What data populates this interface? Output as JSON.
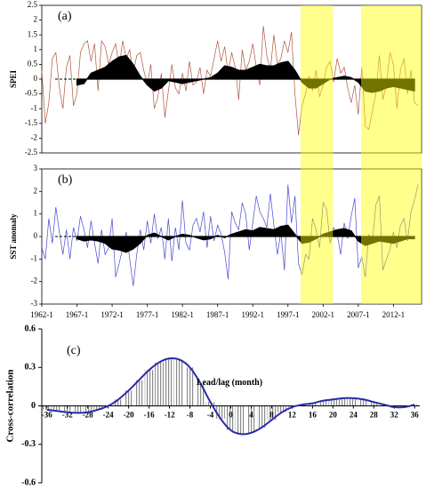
{
  "chart_data": [
    {
      "type": "line",
      "label": "(a)",
      "ylabel": "SPEI",
      "x": [
        1962,
        1962.5,
        1963,
        1963.5,
        1964,
        1964.5,
        1965,
        1965.5,
        1966,
        1966.5,
        1967,
        1967.5,
        1968,
        1968.5,
        1969,
        1969.5,
        1970,
        1970.5,
        1971,
        1971.5,
        1972,
        1972.5,
        1973,
        1973.5,
        1974,
        1974.5,
        1975,
        1975.5,
        1976,
        1976.5,
        1977,
        1977.5,
        1978,
        1978.5,
        1979,
        1979.5,
        1980,
        1980.5,
        1981,
        1981.5,
        1982,
        1982.5,
        1983,
        1983.5,
        1984,
        1984.5,
        1985,
        1985.5,
        1986,
        1986.5,
        1987,
        1987.5,
        1988,
        1988.5,
        1989,
        1989.5,
        1990,
        1990.5,
        1991,
        1991.5,
        1992,
        1992.5,
        1993,
        1993.5,
        1994,
        1994.5,
        1995,
        1995.5,
        1996,
        1996.5,
        1997,
        1997.5,
        1998,
        1998.5,
        1999,
        1999.5,
        2000,
        2000.5,
        2001,
        2001.5,
        2002,
        2002.5,
        2003,
        2003.5,
        2004,
        2004.5,
        2005,
        2005.5,
        2006,
        2006.5,
        2007,
        2007.5,
        2008,
        2008.5,
        2009,
        2009.5,
        2010,
        2010.5,
        2011,
        2011.5,
        2012,
        2012.5,
        2013,
        2013.5,
        2014,
        2014.5,
        2015,
        2015.5
      ],
      "xlim": [
        1962,
        2016
      ],
      "ylim": [
        -2.5,
        2.5
      ],
      "yticks": [
        2.5,
        2,
        1.5,
        1,
        0.5,
        0,
        -0.5,
        -1,
        -1.5,
        -2,
        -2.5
      ],
      "series": [
        {
          "color": "#b0563e",
          "values": [
            0.3,
            -1.5,
            -0.8,
            0.7,
            0.9,
            -0.3,
            -1.0,
            0.4,
            0.8,
            -0.9,
            -0.5,
            0.9,
            1.2,
            1.3,
            0.6,
            1.2,
            -0.4,
            1.3,
            1.1,
            0.5,
            0.9,
            1.2,
            0.4,
            1.3,
            0.7,
            1.0,
            0.2,
            0.8,
            0.9,
            0.3,
            -0.2,
            0.5,
            -1.0,
            -0.6,
            0.2,
            -1.3,
            -0.4,
            0.5,
            -0.3,
            -0.5,
            0.2,
            -0.4,
            0.6,
            -0.2,
            -0.1,
            0.4,
            -0.5,
            0.3,
            0.1,
            0.7,
            1.3,
            0.6,
            1.1,
            0.2,
            0.9,
            0.4,
            -0.7,
            1.0,
            0.3,
            0.6,
            1.2,
            0.4,
            -0.2,
            1.8,
            0.8,
            0.3,
            1.5,
            0.5,
            0.7,
            1.3,
            0.9,
            1.6,
            -0.5,
            -1.9,
            -0.9,
            -0.5,
            0.1,
            -0.4,
            0.3,
            -0.6,
            -0.2,
            0.4,
            0.6,
            -0.1,
            0.7,
            0.2,
            0.4,
            -0.3,
            -0.8,
            -0.2,
            -1.2,
            0.4,
            -1.6,
            -1.7,
            -1.1,
            -0.5,
            0.8,
            -0.7,
            -0.2,
            0.9,
            0.5,
            -1.0,
            0.3,
            0.7,
            -0.5,
            0.3,
            -0.8,
            -0.9
          ]
        },
        {
          "type": "area",
          "color": "#000000",
          "x": [
            1967,
            1968,
            1969,
            1970,
            1971,
            1972,
            1973,
            1974,
            1975,
            1976,
            1977,
            1978,
            1979,
            1980,
            1981,
            1982,
            1983,
            1984,
            1985,
            1986,
            1987,
            1988,
            1989,
            1990,
            1991,
            1992,
            1993,
            1994,
            1995,
            1996,
            1997,
            1998,
            1999,
            2000,
            2001,
            2002,
            2003,
            2004,
            2005,
            2006,
            2007,
            2008,
            2009,
            2010,
            2011,
            2012,
            2013,
            2014,
            2015
          ],
          "values": [
            -0.2,
            -0.15,
            0.2,
            0.3,
            0.4,
            0.6,
            0.75,
            0.8,
            0.5,
            0.1,
            -0.2,
            -0.4,
            -0.3,
            -0.05,
            -0.1,
            -0.15,
            -0.1,
            -0.05,
            0.0,
            0.05,
            0.2,
            0.45,
            0.4,
            0.3,
            0.3,
            0.4,
            0.5,
            0.45,
            0.45,
            0.55,
            0.6,
            0.3,
            -0.1,
            -0.3,
            -0.3,
            -0.15,
            0.0,
            0.05,
            0.1,
            0.05,
            -0.1,
            -0.4,
            -0.45,
            -0.4,
            -0.3,
            -0.25,
            -0.3,
            -0.35,
            -0.4
          ]
        }
      ],
      "highlight_ranges": [
        [
          1998.8,
          2003.4
        ],
        [
          2007.4,
          2016
        ]
      ],
      "highlight_color": "#ffff00"
    },
    {
      "type": "line",
      "label": "(b)",
      "ylabel": "SST anomaly",
      "x": [
        1962,
        1962.5,
        1963,
        1963.5,
        1964,
        1964.5,
        1965,
        1965.5,
        1966,
        1966.5,
        1967,
        1967.5,
        1968,
        1968.5,
        1969,
        1969.5,
        1970,
        1970.5,
        1971,
        1971.5,
        1972,
        1972.5,
        1973,
        1973.5,
        1974,
        1974.5,
        1975,
        1975.5,
        1976,
        1976.5,
        1977,
        1977.5,
        1978,
        1978.5,
        1979,
        1979.5,
        1980,
        1980.5,
        1981,
        1981.5,
        1982,
        1982.5,
        1983,
        1983.5,
        1984,
        1984.5,
        1985,
        1985.5,
        1986,
        1986.5,
        1987,
        1987.5,
        1988,
        1988.5,
        1989,
        1989.5,
        1990,
        1990.5,
        1991,
        1991.5,
        1992,
        1992.5,
        1993,
        1993.5,
        1994,
        1994.5,
        1995,
        1995.5,
        1996,
        1996.5,
        1997,
        1997.5,
        1998,
        1998.5,
        1999,
        1999.5,
        2000,
        2000.5,
        2001,
        2001.5,
        2002,
        2002.5,
        2003,
        2003.5,
        2004,
        2004.5,
        2005,
        2005.5,
        2006,
        2006.5,
        2007,
        2007.5,
        2008,
        2008.5,
        2009,
        2009.5,
        2010,
        2010.5,
        2011,
        2011.5,
        2012,
        2012.5,
        2013,
        2013.5,
        2014,
        2014.5,
        2015,
        2015.5
      ],
      "xlim": [
        1962,
        2016
      ],
      "ylim": [
        -3,
        3
      ],
      "yticks": [
        3,
        2,
        1,
        0,
        -1,
        -2,
        -3
      ],
      "xticks": [
        {
          "value": 1962,
          "label": "1962-1"
        },
        {
          "value": 1967,
          "label": "1967-1"
        },
        {
          "value": 1972,
          "label": "1972-1"
        },
        {
          "value": 1977,
          "label": "1977-1"
        },
        {
          "value": 1982,
          "label": "1982-1"
        },
        {
          "value": 1987,
          "label": "1987-1"
        },
        {
          "value": 1992,
          "label": "1992-1"
        },
        {
          "value": 1997,
          "label": "1997-1"
        },
        {
          "value": 2002,
          "label": "2002-1"
        },
        {
          "value": 2007,
          "label": "2007-1"
        },
        {
          "value": 2012,
          "label": "2012-1"
        }
      ],
      "series": [
        {
          "color": "#4848d0",
          "values": [
            -0.5,
            -1.0,
            0.8,
            -0.3,
            1.3,
            0.2,
            -0.8,
            0.3,
            -1.0,
            0.4,
            -0.2,
            0.9,
            0.3,
            -0.5,
            0.7,
            -0.3,
            -1.2,
            0.3,
            -0.8,
            -0.5,
            0.8,
            -1.8,
            -1.2,
            -0.5,
            0.2,
            -1.0,
            -2.2,
            -0.8,
            0.3,
            -0.6,
            0.7,
            -0.3,
            1.0,
            -0.1,
            0.4,
            -1.0,
            0.8,
            -1.1,
            0.4,
            -0.6,
            1.6,
            -0.3,
            -0.6,
            0.5,
            0.8,
            0.2,
            1.1,
            -0.5,
            0.9,
            -0.2,
            0.5,
            0.1,
            -0.7,
            -1.9,
            1.1,
            0.6,
            0.3,
            1.5,
            1.0,
            -0.6,
            0.6,
            1.8,
            1.1,
            0.8,
            0.4,
            1.9,
            0.5,
            -0.8,
            0.2,
            -1.5,
            2.3,
            0.6,
            1.8,
            -1.2,
            -1.7,
            -0.8,
            -1.0,
            0.8,
            0.3,
            -0.5,
            1.5,
            1.2,
            -0.3,
            0.4,
            0.1,
            -0.8,
            0.6,
            -0.1,
            0.9,
            1.7,
            -1.4,
            -0.9,
            -1.8,
            0.1,
            -0.3,
            1.4,
            1.8,
            -1.5,
            -1.0,
            -0.6,
            0.2,
            -0.5,
            0.5,
            0.8,
            -0.2,
            1.1,
            1.6,
            2.3
          ]
        },
        {
          "type": "area",
          "color": "#000000",
          "x": [
            1967,
            1968,
            1969,
            1970,
            1971,
            1972,
            1973,
            1974,
            1975,
            1976,
            1977,
            1978,
            1979,
            1980,
            1981,
            1982,
            1983,
            1984,
            1985,
            1986,
            1987,
            1988,
            1989,
            1990,
            1991,
            1992,
            1993,
            1994,
            1995,
            1996,
            1997,
            1998,
            1999,
            2000,
            2001,
            2002,
            2003,
            2004,
            2005,
            2006,
            2007,
            2008,
            2009,
            2010,
            2011,
            2012,
            2013,
            2014,
            2015
          ],
          "values": [
            -0.1,
            -0.2,
            -0.15,
            -0.2,
            -0.3,
            -0.55,
            -0.6,
            -0.7,
            -0.55,
            -0.3,
            0.05,
            0.15,
            0.0,
            -0.15,
            0.0,
            0.1,
            0.05,
            -0.05,
            -0.15,
            -0.1,
            0.05,
            -0.05,
            0.1,
            0.2,
            0.3,
            0.25,
            0.4,
            0.35,
            0.3,
            0.45,
            0.5,
            0.1,
            -0.3,
            -0.25,
            -0.1,
            0.1,
            0.2,
            0.3,
            0.35,
            0.25,
            -0.2,
            -0.4,
            -0.3,
            -0.2,
            -0.25,
            -0.3,
            -0.2,
            -0.1,
            -0.1
          ]
        }
      ],
      "highlight_ranges": [
        [
          1998.8,
          2003.4
        ],
        [
          2007.4,
          2016
        ]
      ],
      "highlight_color": "#ffff00"
    },
    {
      "type": "bar",
      "label": "(c)",
      "ylabel": "Cross-correlation",
      "xlabel": "Lead/lag (month)",
      "x": [
        -36,
        -34,
        -32,
        -30,
        -28,
        -26,
        -24,
        -22,
        -20,
        -18,
        -16,
        -14,
        -12,
        -10,
        -8,
        -6,
        -4,
        -2,
        0,
        2,
        4,
        6,
        8,
        10,
        12,
        14,
        16,
        18,
        20,
        22,
        24,
        26,
        28,
        30,
        32,
        34,
        36
      ],
      "values": [
        -0.03,
        -0.04,
        -0.05,
        -0.055,
        -0.05,
        -0.03,
        0.0,
        0.05,
        0.12,
        0.2,
        0.28,
        0.34,
        0.37,
        0.36,
        0.3,
        0.18,
        0.03,
        -0.1,
        -0.19,
        -0.22,
        -0.21,
        -0.17,
        -0.11,
        -0.05,
        -0.01,
        0.01,
        0.02,
        0.04,
        0.05,
        0.06,
        0.06,
        0.05,
        0.03,
        0.01,
        -0.01,
        -0.01,
        0.01
      ],
      "xlim": [
        -37,
        37
      ],
      "ylim": [
        -0.6,
        0.6
      ],
      "yticks": [
        0.6,
        0.3,
        0,
        -0.3,
        -0.6
      ],
      "xticks": [
        -36,
        -32,
        -28,
        -24,
        -20,
        -16,
        -12,
        -8,
        -4,
        0,
        4,
        8,
        12,
        16,
        20,
        24,
        28,
        32,
        36
      ],
      "bar_color": "#8a8a8a",
      "line_color": "#2a2aa8"
    }
  ]
}
